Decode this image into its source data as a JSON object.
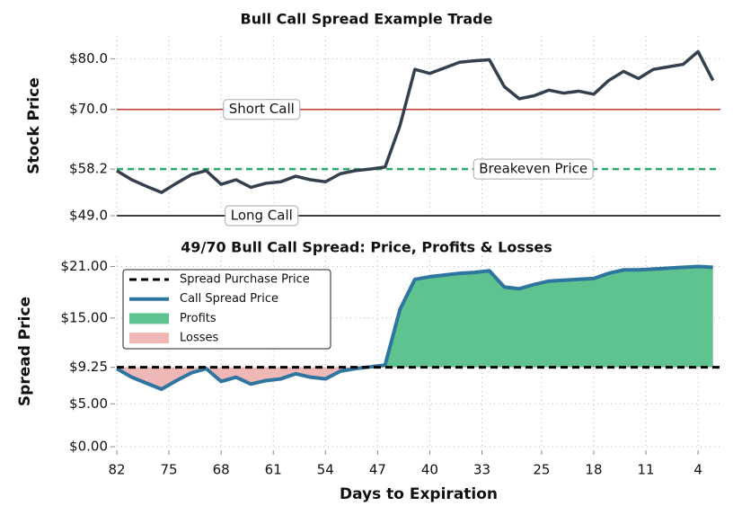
{
  "chart_data": [
    {
      "type": "line",
      "title": "Bull Call Spread Example Trade",
      "ylabel": "Stock Price",
      "x": [
        82,
        80,
        78,
        76,
        74,
        72,
        70,
        68,
        66,
        64,
        62,
        60,
        58,
        56,
        54,
        52,
        50,
        48,
        46,
        44,
        42,
        40,
        38,
        36,
        34,
        32,
        30,
        28,
        26,
        24,
        22,
        20,
        18,
        16,
        14,
        12,
        10,
        8,
        6,
        4,
        2
      ],
      "series": [
        {
          "color": "#34404d",
          "values": [
            57.9,
            56.1,
            54.8,
            53.6,
            55.4,
            57.1,
            57.9,
            55.2,
            56.1,
            54.6,
            55.4,
            55.7,
            56.8,
            56.1,
            55.7,
            57.3,
            57.9,
            58.2,
            58.6,
            66.8,
            77.9,
            77.1,
            78.2,
            79.3,
            79.6,
            79.8,
            74.5,
            72.1,
            72.7,
            73.8,
            73.2,
            73.6,
            73.0,
            75.7,
            77.5,
            76.1,
            77.9,
            78.4,
            78.9,
            81.4,
            75.7
          ]
        }
      ],
      "hlines": [
        {
          "label": "Short Call",
          "value": 70,
          "color": "#c0392b",
          "style": "solid"
        },
        {
          "label": "Long Call",
          "value": 49,
          "color": "#000000",
          "style": "solid"
        },
        {
          "label": "Breakeven Price",
          "value": 58.2,
          "color": "#2ca870",
          "style": "dashed"
        }
      ],
      "xlim": [
        82,
        1
      ],
      "ylim": [
        49,
        84.5
      ],
      "yticks": [
        {
          "value": 49,
          "label": "$49.0"
        },
        {
          "value": 58.2,
          "label": "$58.2"
        },
        {
          "value": 70,
          "label": "$70.0"
        },
        {
          "value": 80,
          "label": "$80.0"
        }
      ],
      "grid": true
    },
    {
      "type": "line",
      "title": "49/70 Bull Call Spread: Price, Profits & Losses",
      "ylabel": "Spread Price",
      "xlabel": "Days to Expiration",
      "x": [
        82,
        80,
        78,
        76,
        74,
        72,
        70,
        68,
        66,
        64,
        62,
        60,
        58,
        56,
        54,
        52,
        50,
        48,
        46,
        44,
        42,
        40,
        38,
        36,
        34,
        32,
        30,
        28,
        26,
        24,
        22,
        20,
        18,
        16,
        14,
        12,
        10,
        8,
        6,
        4,
        2
      ],
      "series": [
        {
          "name": "Call Spread Price",
          "color": "#2e75a0",
          "values": [
            9.1,
            8.1,
            7.4,
            6.7,
            7.7,
            8.6,
            9.1,
            7.6,
            8.1,
            7.3,
            7.7,
            7.9,
            8.5,
            8.1,
            7.9,
            8.8,
            9.1,
            9.3,
            9.5,
            16,
            19.5,
            19.8,
            20.0,
            20.2,
            20.3,
            20.5,
            18.6,
            18.4,
            18.9,
            19.3,
            19.4,
            19.5,
            19.6,
            20.2,
            20.6,
            20.6,
            20.7,
            20.8,
            20.9,
            21.0,
            20.9
          ]
        }
      ],
      "reference": {
        "name": "Spread Purchase Price",
        "value": 9.25,
        "color": "#000000"
      },
      "fills": [
        {
          "name": "Profits",
          "color": "#5fc38f"
        },
        {
          "name": "Losses",
          "color": "#f0b7b7"
        }
      ],
      "legend": "upper left",
      "xlim": [
        82,
        1
      ],
      "ylim": [
        0,
        22.2
      ],
      "xticks": [
        82,
        75,
        68,
        61,
        54,
        47,
        40,
        33,
        25,
        18,
        11,
        4
      ],
      "yticks": [
        {
          "value": 0,
          "label": "$0.00"
        },
        {
          "value": 5,
          "label": "$5.00"
        },
        {
          "value": 9.25,
          "label": "$9.25"
        },
        {
          "value": 15,
          "label": "$15.00"
        },
        {
          "value": 21,
          "label": "$21.00"
        }
      ],
      "grid": true
    }
  ]
}
